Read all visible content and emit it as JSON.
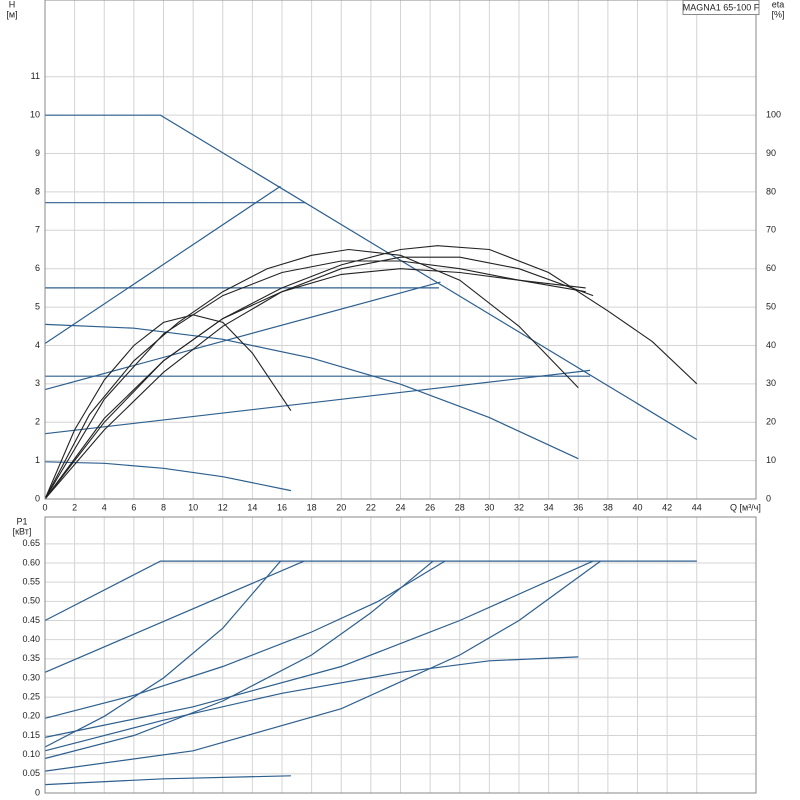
{
  "chart_data": [
    {
      "type": "line",
      "title": "MAGNA1 65-100 F",
      "y_label": "H",
      "y_unit": "[м]",
      "y2_label": "eta",
      "y2_unit": "[%]",
      "x_label": "Q [м³/ч]",
      "xlim": [
        0,
        48
      ],
      "xticks": [
        0,
        2,
        4,
        6,
        8,
        10,
        12,
        14,
        16,
        18,
        20,
        22,
        24,
        26,
        28,
        30,
        32,
        34,
        36,
        38,
        40,
        42,
        44
      ],
      "ylim": [
        0,
        13
      ],
      "yticks": [
        0,
        1,
        2,
        3,
        4,
        5,
        6,
        7,
        8,
        9,
        10,
        11
      ],
      "y2lim": [
        0,
        130
      ],
      "y2ticks": [
        0,
        10,
        20,
        30,
        40,
        50,
        60,
        70,
        80,
        90,
        100
      ],
      "grid": true,
      "series": [
        {
          "color": "#2d5f8e",
          "x": [
            0,
            7.8,
            44
          ],
          "values": [
            10,
            10,
            1.55
          ]
        },
        {
          "color": "#2d5f8e",
          "x": [
            0,
            17.6
          ],
          "values": [
            7.72,
            7.72
          ]
        },
        {
          "color": "#2d5f8e",
          "x": [
            0,
            26.6
          ],
          "values": [
            5.5,
            5.5
          ]
        },
        {
          "color": "#2d5f8e",
          "x": [
            0,
            36.8
          ],
          "values": [
            3.2,
            3.2
          ]
        },
        {
          "color": "#2d5f8e",
          "x": [
            0,
            15.9
          ],
          "values": [
            4.05,
            8.15
          ]
        },
        {
          "color": "#2d5f8e",
          "x": [
            0,
            26.7
          ],
          "values": [
            2.85,
            5.65
          ]
        },
        {
          "color": "#2d5f8e",
          "x": [
            0,
            36.8
          ],
          "values": [
            1.7,
            3.35
          ]
        },
        {
          "color": "#2d5f8e",
          "x": [
            0,
            6,
            12,
            18,
            24,
            30,
            36
          ],
          "values": [
            4.55,
            4.45,
            4.16,
            3.67,
            2.99,
            2.12,
            1.05
          ]
        },
        {
          "color": "#2d5f8e",
          "x": [
            0,
            4,
            8,
            12,
            16.6
          ],
          "values": [
            0.97,
            0.93,
            0.8,
            0.58,
            0.22
          ]
        },
        {
          "color": "#222222",
          "axis": "y2",
          "x": [
            0,
            4,
            8,
            12,
            16,
            20,
            24,
            26.5,
            30,
            34,
            38,
            41,
            44
          ],
          "values": [
            0,
            21,
            36,
            47,
            55,
            61,
            65,
            66,
            65,
            59,
            49,
            41,
            30
          ]
        },
        {
          "color": "#222222",
          "axis": "y2",
          "x": [
            0,
            3,
            6,
            9,
            12,
            15,
            18,
            20.5,
            24,
            28,
            32,
            36
          ],
          "values": [
            0,
            22,
            36,
            46,
            54,
            60,
            63.5,
            65,
            63.5,
            57,
            45,
            29
          ]
        },
        {
          "color": "#222222",
          "axis": "y2",
          "x": [
            0,
            2,
            4,
            6,
            8,
            10,
            12,
            14,
            16.6
          ],
          "values": [
            0,
            18,
            31,
            40,
            46,
            48,
            46,
            38,
            23
          ]
        },
        {
          "color": "#222222",
          "axis": "y2",
          "x": [
            0,
            4,
            8,
            12,
            16,
            20,
            24,
            28,
            32,
            36.5
          ],
          "values": [
            0,
            26,
            43,
            53,
            59,
            62,
            62,
            60,
            57,
            54
          ]
        },
        {
          "color": "#222222",
          "axis": "y2",
          "x": [
            0,
            4,
            8,
            12,
            16,
            20,
            24,
            28,
            32,
            36.5
          ],
          "values": [
            0,
            20,
            36,
            47,
            54,
            58.5,
            60,
            59,
            57,
            55
          ]
        },
        {
          "color": "#222222",
          "axis": "y2",
          "x": [
            0,
            4,
            8,
            12,
            16,
            20,
            24,
            28,
            32,
            37
          ],
          "values": [
            0,
            18,
            33,
            45,
            54,
            60,
            63,
            63,
            60,
            53
          ]
        }
      ]
    },
    {
      "type": "line",
      "y_label": "P1",
      "y_unit": "[кВт]",
      "xlim": [
        0,
        48
      ],
      "ylim": [
        0,
        0.72
      ],
      "yticks": [
        0,
        0.05,
        {
          "value": 0.1,
          "label": "0.10"
        },
        0.15,
        {
          "value": 0.2,
          "label": "0.20"
        },
        0.25,
        {
          "value": 0.3,
          "label": "0.30"
        },
        0.35,
        {
          "value": 0.4,
          "label": "0.40"
        },
        0.45,
        {
          "value": 0.5,
          "label": "0.50"
        },
        0.55,
        {
          "value": 0.6,
          "label": "0.60"
        },
        0.65
      ],
      "grid": true,
      "series": [
        {
          "color": "#2d5f8e",
          "x": [
            0,
            7.8,
            44
          ],
          "values": [
            0.45,
            0.605,
            0.605
          ]
        },
        {
          "color": "#2d5f8e",
          "x": [
            0,
            17.5
          ],
          "values": [
            0.315,
            0.605
          ]
        },
        {
          "color": "#2d5f8e",
          "x": [
            0,
            4,
            8,
            12,
            15.9
          ],
          "values": [
            0.12,
            0.2,
            0.3,
            0.43,
            0.605
          ]
        },
        {
          "color": "#2d5f8e",
          "x": [
            0,
            6,
            12,
            18,
            22.5,
            27
          ],
          "values": [
            0.195,
            0.255,
            0.33,
            0.42,
            0.5,
            0.605
          ]
        },
        {
          "color": "#2d5f8e",
          "x": [
            0,
            6,
            12,
            18,
            22,
            26.2
          ],
          "values": [
            0.09,
            0.15,
            0.24,
            0.36,
            0.47,
            0.605
          ]
        },
        {
          "color": "#2d5f8e",
          "x": [
            0,
            8,
            16,
            24,
            30,
            36
          ],
          "values": [
            0.11,
            0.19,
            0.26,
            0.315,
            0.345,
            0.355
          ]
        },
        {
          "color": "#2d5f8e",
          "x": [
            0,
            10,
            20,
            28,
            37
          ],
          "values": [
            0.145,
            0.225,
            0.33,
            0.45,
            0.605
          ]
        },
        {
          "color": "#2d5f8e",
          "x": [
            0,
            10,
            20,
            28,
            32,
            37.5
          ],
          "values": [
            0.057,
            0.11,
            0.22,
            0.36,
            0.45,
            0.605
          ]
        },
        {
          "color": "#2d5f8e",
          "x": [
            0,
            8,
            16.6
          ],
          "values": [
            0.022,
            0.037,
            0.045
          ]
        }
      ]
    }
  ]
}
